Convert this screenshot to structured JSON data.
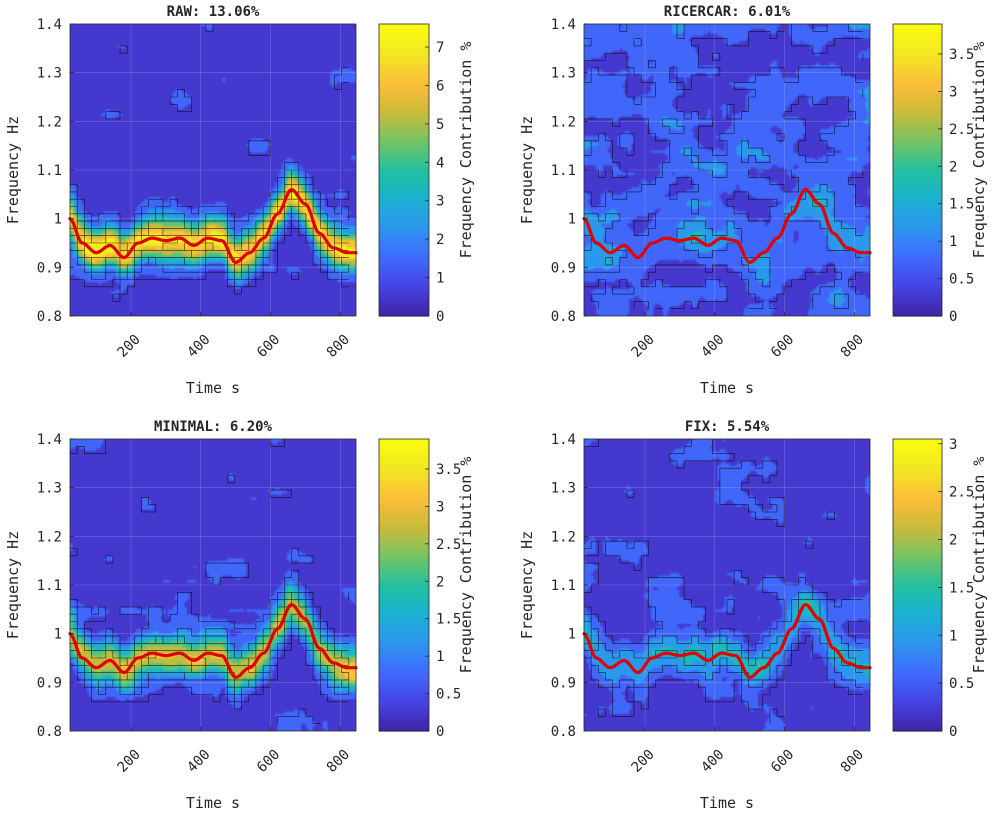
{
  "colors": {
    "ridge_line": "#e00000",
    "contour_line": "#000000",
    "colormap": [
      "#3e26a8",
      "#4743e4",
      "#3f6bfd",
      "#2d95ee",
      "#19b1d2",
      "#23c09f",
      "#74c465",
      "#cabb3a",
      "#fbbe3a",
      "#f2e524",
      "#f9fb0e"
    ]
  },
  "chart_data": [
    {
      "type": "heatmap",
      "id": "raw",
      "title": "RAW: 13.06%",
      "xlabel": "Time s",
      "ylabel": "Frequency Hz",
      "colorbar_label": "Frequency Contribution %",
      "xlim": [
        25,
        845
      ],
      "ylim": [
        0.8,
        1.4
      ],
      "xticks": [
        200,
        400,
        600,
        800
      ],
      "xtick_labels": [
        "200",
        "400",
        "600",
        "800"
      ],
      "yticks": [
        0.8,
        0.9,
        1.0,
        1.1,
        1.2,
        1.3,
        1.4
      ],
      "ytick_labels": [
        "0.8",
        "0.9",
        "1",
        "1.1",
        "1.2",
        "1.3",
        "1.4"
      ],
      "clim": [
        0,
        7.6
      ],
      "cticks": [
        0,
        1,
        2,
        3,
        4,
        5,
        6,
        7
      ],
      "ctick_labels": [
        "0",
        "1",
        "2",
        "3",
        "4",
        "5",
        "6",
        "7"
      ],
      "field": {
        "seed": 11,
        "background": 0.6,
        "noise": 2.4,
        "ridge_peak": 6.8,
        "ridge_width": 0.028
      },
      "ridge": {
        "t": [
          25,
          60,
          100,
          140,
          180,
          220,
          260,
          300,
          340,
          380,
          420,
          460,
          500,
          540,
          580,
          620,
          660,
          700,
          740,
          780,
          820,
          845
        ],
        "f": [
          1.0,
          0.95,
          0.93,
          0.945,
          0.92,
          0.95,
          0.96,
          0.955,
          0.96,
          0.945,
          0.96,
          0.955,
          0.91,
          0.93,
          0.96,
          1.01,
          1.06,
          1.03,
          0.97,
          0.94,
          0.93,
          0.93
        ]
      }
    },
    {
      "type": "heatmap",
      "id": "ricercar",
      "title": "RICERCAR: 6.01%",
      "xlabel": "Time s",
      "ylabel": "Frequency Hz",
      "colorbar_label": "Frequency Contribution %",
      "xlim": [
        25,
        845
      ],
      "ylim": [
        0.8,
        1.4
      ],
      "xticks": [
        200,
        400,
        600,
        800
      ],
      "xtick_labels": [
        "200",
        "400",
        "600",
        "800"
      ],
      "yticks": [
        0.8,
        0.9,
        1.0,
        1.1,
        1.2,
        1.3,
        1.4
      ],
      "ytick_labels": [
        "0.8",
        "0.9",
        "1",
        "1.1",
        "1.2",
        "1.3",
        "1.4"
      ],
      "clim": [
        0,
        3.9
      ],
      "cticks": [
        0,
        0.5,
        1,
        1.5,
        2,
        2.5,
        3,
        3.5
      ],
      "ctick_labels": [
        "0",
        "0.5",
        "1",
        "1.5",
        "2",
        "2.5",
        "3",
        "3.5"
      ],
      "field": {
        "seed": 23,
        "background": 0.9,
        "noise": 2.2,
        "ridge_peak": 0.6,
        "ridge_width": 0.03
      },
      "ridge": {
        "t": [
          25,
          60,
          100,
          140,
          180,
          220,
          260,
          300,
          340,
          380,
          420,
          460,
          500,
          540,
          580,
          620,
          660,
          700,
          740,
          780,
          820,
          845
        ],
        "f": [
          1.0,
          0.95,
          0.93,
          0.945,
          0.92,
          0.95,
          0.96,
          0.955,
          0.96,
          0.945,
          0.96,
          0.955,
          0.91,
          0.93,
          0.96,
          1.01,
          1.06,
          1.03,
          0.97,
          0.94,
          0.93,
          0.93
        ]
      }
    },
    {
      "type": "heatmap",
      "id": "minimal",
      "title": "MINIMAL: 6.20%",
      "xlabel": "Time s",
      "ylabel": "Frequency Hz",
      "colorbar_label": "Frequency Contribution %",
      "xlim": [
        25,
        845
      ],
      "ylim": [
        0.8,
        1.4
      ],
      "xticks": [
        200,
        400,
        600,
        800
      ],
      "xtick_labels": [
        "200",
        "400",
        "600",
        "800"
      ],
      "yticks": [
        0.8,
        0.9,
        1.0,
        1.1,
        1.2,
        1.3,
        1.4
      ],
      "ytick_labels": [
        "0.8",
        "0.9",
        "1",
        "1.1",
        "1.2",
        "1.3",
        "1.4"
      ],
      "clim": [
        0,
        3.9
      ],
      "cticks": [
        0,
        0.5,
        1,
        1.5,
        2,
        2.5,
        3,
        3.5
      ],
      "ctick_labels": [
        "0",
        "0.5",
        "1",
        "1.5",
        "2",
        "2.5",
        "3",
        "3.5"
      ],
      "field": {
        "seed": 37,
        "background": 0.35,
        "noise": 1.3,
        "ridge_peak": 2.6,
        "ridge_width": 0.03
      },
      "ridge": {
        "t": [
          25,
          60,
          100,
          140,
          180,
          220,
          260,
          300,
          340,
          380,
          420,
          460,
          500,
          540,
          580,
          620,
          660,
          700,
          740,
          780,
          820,
          845
        ],
        "f": [
          1.0,
          0.95,
          0.93,
          0.945,
          0.92,
          0.95,
          0.96,
          0.955,
          0.96,
          0.945,
          0.96,
          0.955,
          0.91,
          0.93,
          0.96,
          1.01,
          1.06,
          1.03,
          0.97,
          0.94,
          0.93,
          0.93
        ]
      }
    },
    {
      "type": "heatmap",
      "id": "fix",
      "title": "FIX: 5.54%",
      "xlabel": "Time s",
      "ylabel": "Frequency Hz",
      "colorbar_label": "Frequency Contribution %",
      "xlim": [
        25,
        845
      ],
      "ylim": [
        0.8,
        1.4
      ],
      "xticks": [
        200,
        400,
        600,
        800
      ],
      "xtick_labels": [
        "200",
        "400",
        "600",
        "800"
      ],
      "yticks": [
        0.8,
        0.9,
        1.0,
        1.1,
        1.2,
        1.3,
        1.4
      ],
      "ytick_labels": [
        "0.8",
        "0.9",
        "1",
        "1.1",
        "1.2",
        "1.3",
        "1.4"
      ],
      "clim": [
        0,
        3.05
      ],
      "cticks": [
        0,
        0.5,
        1,
        1.5,
        2,
        2.5,
        3
      ],
      "ctick_labels": [
        "0",
        "0.5",
        "1",
        "1.5",
        "2",
        "2.5",
        "3"
      ],
      "field": {
        "seed": 51,
        "background": 0.3,
        "noise": 1.1,
        "ridge_peak": 1.0,
        "ridge_width": 0.03
      },
      "ridge": {
        "t": [
          25,
          60,
          100,
          140,
          180,
          220,
          260,
          300,
          340,
          380,
          420,
          460,
          500,
          540,
          580,
          620,
          660,
          700,
          740,
          780,
          820,
          845
        ],
        "f": [
          1.0,
          0.95,
          0.93,
          0.945,
          0.92,
          0.95,
          0.96,
          0.955,
          0.96,
          0.945,
          0.96,
          0.955,
          0.91,
          0.93,
          0.96,
          1.01,
          1.06,
          1.03,
          0.97,
          0.94,
          0.93,
          0.93
        ]
      }
    }
  ]
}
